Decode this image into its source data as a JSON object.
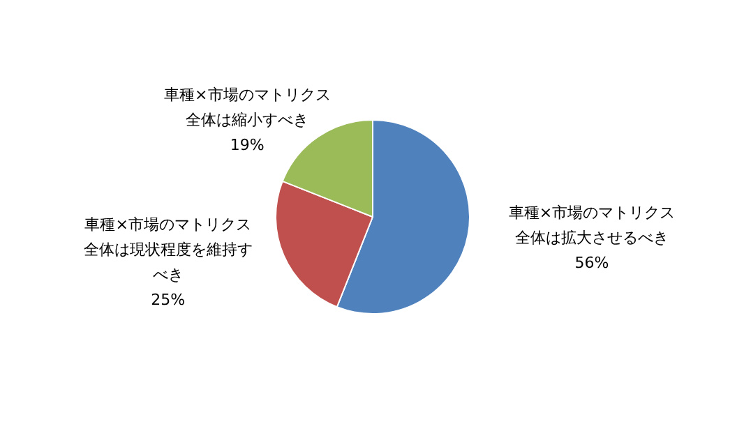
{
  "chart_data": {
    "type": "pie",
    "categories": [
      "車種×市場のマトリクス全体は拡大させるべき",
      "車種×市場のマトリクス全体は現状程度を維持すべき",
      "車種×市場のマトリクス全体は縮小すべき"
    ],
    "values": [
      56,
      25,
      19
    ],
    "colors": [
      "#4f81bd",
      "#c0504d",
      "#9bbb59"
    ],
    "value_labels": [
      "56%",
      "25%",
      "19%"
    ],
    "legend": false
  }
}
